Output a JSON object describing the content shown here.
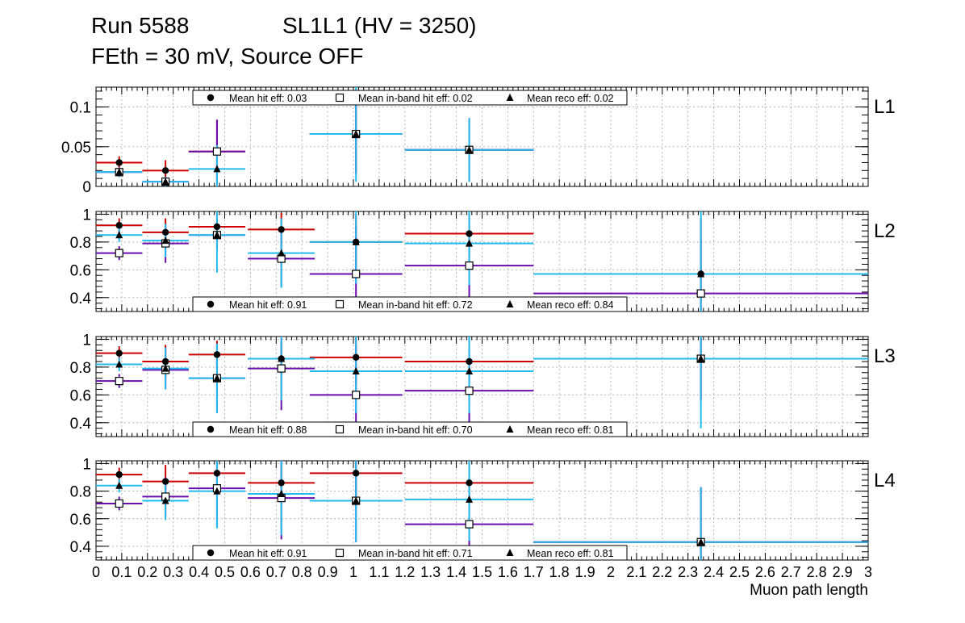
{
  "header": {
    "run": "Run 5588",
    "chamber": "SL1L1 (HV = 3250)",
    "conditions": "FEth = 30 mV, Source OFF"
  },
  "colors": {
    "hit": "#cc0000",
    "inband": "#6a0dad",
    "reco": "#22bbee",
    "marker": "#000000"
  },
  "chart_data": {
    "type": "scatter",
    "xlabel": "Muon path length",
    "xlim": [
      0,
      3
    ],
    "x_tick_labels": [
      "0",
      "0.1",
      "0.2",
      "0.3",
      "0.4",
      "0.5",
      "0.6",
      "0.7",
      "0.8",
      "0.9",
      "1",
      "1.1",
      "1.2",
      "1.3",
      "1.4",
      "1.5",
      "1.6",
      "1.7",
      "1.8",
      "1.9",
      "2",
      "2.1",
      "2.2",
      "2.3",
      "2.4",
      "2.5",
      "2.6",
      "2.7",
      "2.8",
      "2.9",
      "3"
    ],
    "grid": true,
    "series_style": {
      "hit": "circle",
      "inband": "open-square",
      "reco": "triangle"
    },
    "panels": [
      {
        "label": "L1",
        "ylim": [
          0,
          0.125
        ],
        "y_ticks": [
          0,
          0.05,
          0.1
        ],
        "y_tick_labels": [
          "0",
          "0.05",
          "0.1"
        ],
        "legend_position": "top",
        "legend": {
          "hit": "Mean hit  eff: 0.03",
          "inband": "Mean in-band hit eff: 0.02",
          "reco": "Mean reco eff: 0.02"
        },
        "hit": [
          {
            "x": 0.09,
            "xerr": 0.09,
            "y": 0.03,
            "yerr": 0.008
          },
          {
            "x": 0.27,
            "xerr": 0.09,
            "y": 0.02,
            "yerr": 0.013
          },
          {
            "x": 0.47,
            "xerr": 0.11,
            "y": 0.044,
            "yerr": 0.04
          },
          {
            "x": 1.01,
            "xerr": 0.18,
            "y": 0.066,
            "yerr": 0.05
          },
          {
            "x": 1.45,
            "xerr": 0.25,
            "y": 0.046,
            "yerr": 0.04
          }
        ],
        "inband": [
          {
            "x": 0.09,
            "xerr": 0.09,
            "y": 0.018,
            "yerr": 0.006
          },
          {
            "x": 0.27,
            "xerr": 0.09,
            "y": 0.006,
            "yerr": 0.006
          },
          {
            "x": 0.47,
            "xerr": 0.11,
            "y": 0.044,
            "yerr": 0.04
          },
          {
            "x": 1.01,
            "xerr": 0.18,
            "y": 0.066,
            "yerr": 0.05
          },
          {
            "x": 1.45,
            "xerr": 0.25,
            "y": 0.046,
            "yerr": 0.04
          }
        ],
        "reco": [
          {
            "x": 0.09,
            "xerr": 0.09,
            "y": 0.018,
            "yerr": 0.006
          },
          {
            "x": 0.27,
            "xerr": 0.09,
            "y": 0.006,
            "yerr": 0.006
          },
          {
            "x": 0.47,
            "xerr": 0.11,
            "y": 0.022,
            "yerr": 0.03
          },
          {
            "x": 1.01,
            "xerr": 0.18,
            "y": 0.066,
            "yerr": 0.06
          },
          {
            "x": 1.45,
            "xerr": 0.25,
            "y": 0.046,
            "yerr": 0.04
          }
        ]
      },
      {
        "label": "L2",
        "ylim": [
          0.3,
          1.02
        ],
        "y_ticks": [
          0.4,
          0.6,
          0.8,
          1
        ],
        "y_tick_labels": [
          "0.4",
          "0.6",
          "0.8",
          "1"
        ],
        "legend_position": "bottom",
        "legend": {
          "hit": "Mean hit  eff: 0.91",
          "inband": "Mean in-band hit eff: 0.72",
          "reco": "Mean reco eff: 0.84"
        },
        "hit": [
          {
            "x": 0.09,
            "xerr": 0.09,
            "y": 0.92,
            "yerr": 0.05
          },
          {
            "x": 0.27,
            "xerr": 0.09,
            "y": 0.87,
            "yerr": 0.1
          },
          {
            "x": 0.47,
            "xerr": 0.11,
            "y": 0.91,
            "yerr": 0.1
          },
          {
            "x": 0.72,
            "xerr": 0.13,
            "y": 0.89,
            "yerr": 0.12
          },
          {
            "x": 1.01,
            "xerr": 0.18,
            "y": 0.8,
            "yerr": 0.2
          },
          {
            "x": 1.45,
            "xerr": 0.25,
            "y": 0.86,
            "yerr": 0.15
          },
          {
            "x": 2.35,
            "xerr": 0.65,
            "y": 0.57,
            "yerr": 0.4
          }
        ],
        "inband": [
          {
            "x": 0.09,
            "xerr": 0.09,
            "y": 0.72,
            "yerr": 0.05
          },
          {
            "x": 0.27,
            "xerr": 0.09,
            "y": 0.79,
            "yerr": 0.14
          },
          {
            "x": 0.47,
            "xerr": 0.11,
            "y": 0.85,
            "yerr": 0.1
          },
          {
            "x": 0.72,
            "xerr": 0.13,
            "y": 0.68,
            "yerr": 0.2
          },
          {
            "x": 1.01,
            "xerr": 0.18,
            "y": 0.57,
            "yerr": 0.35
          },
          {
            "x": 1.45,
            "xerr": 0.25,
            "y": 0.63,
            "yerr": 0.3
          },
          {
            "x": 2.35,
            "xerr": 0.65,
            "y": 0.43,
            "yerr": 0.4
          }
        ],
        "reco": [
          {
            "x": 0.09,
            "xerr": 0.09,
            "y": 0.85,
            "yerr": 0.05
          },
          {
            "x": 0.27,
            "xerr": 0.09,
            "y": 0.81,
            "yerr": 0.12
          },
          {
            "x": 0.47,
            "xerr": 0.11,
            "y": 0.85,
            "yerr": 0.27
          },
          {
            "x": 0.72,
            "xerr": 0.13,
            "y": 0.72,
            "yerr": 0.25
          },
          {
            "x": 1.01,
            "xerr": 0.18,
            "y": 0.8,
            "yerr": 0.3
          },
          {
            "x": 1.45,
            "xerr": 0.25,
            "y": 0.79,
            "yerr": 0.3
          },
          {
            "x": 2.35,
            "xerr": 0.65,
            "y": 0.57,
            "yerr": 0.5
          }
        ]
      },
      {
        "label": "L3",
        "ylim": [
          0.3,
          1.02
        ],
        "y_ticks": [
          0.4,
          0.6,
          0.8,
          1
        ],
        "y_tick_labels": [
          "0.4",
          "0.6",
          "0.8",
          "1"
        ],
        "legend_position": "bottom",
        "legend": {
          "hit": "Mean hit  eff: 0.88",
          "inband": "Mean in-band hit eff: 0.70",
          "reco": "Mean reco eff: 0.81"
        },
        "hit": [
          {
            "x": 0.09,
            "xerr": 0.09,
            "y": 0.9,
            "yerr": 0.05
          },
          {
            "x": 0.27,
            "xerr": 0.09,
            "y": 0.84,
            "yerr": 0.12
          },
          {
            "x": 0.47,
            "xerr": 0.11,
            "y": 0.89,
            "yerr": 0.1
          },
          {
            "x": 0.72,
            "xerr": 0.13,
            "y": 0.86,
            "yerr": 0.12
          },
          {
            "x": 1.01,
            "xerr": 0.18,
            "y": 0.87,
            "yerr": 0.2
          },
          {
            "x": 1.45,
            "xerr": 0.25,
            "y": 0.84,
            "yerr": 0.15
          },
          {
            "x": 2.35,
            "xerr": 0.65,
            "y": 0.86,
            "yerr": 0.3
          }
        ],
        "inband": [
          {
            "x": 0.09,
            "xerr": 0.09,
            "y": 0.7,
            "yerr": 0.05
          },
          {
            "x": 0.27,
            "xerr": 0.09,
            "y": 0.78,
            "yerr": 0.14
          },
          {
            "x": 0.47,
            "xerr": 0.11,
            "y": 0.72,
            "yerr": 0.25
          },
          {
            "x": 0.72,
            "xerr": 0.13,
            "y": 0.79,
            "yerr": 0.3
          },
          {
            "x": 1.01,
            "xerr": 0.18,
            "y": 0.6,
            "yerr": 0.35
          },
          {
            "x": 1.45,
            "xerr": 0.25,
            "y": 0.63,
            "yerr": 0.3
          },
          {
            "x": 2.35,
            "xerr": 0.65,
            "y": 0.86,
            "yerr": 0.3
          }
        ],
        "reco": [
          {
            "x": 0.09,
            "xerr": 0.09,
            "y": 0.82,
            "yerr": 0.05
          },
          {
            "x": 0.27,
            "xerr": 0.09,
            "y": 0.79,
            "yerr": 0.15
          },
          {
            "x": 0.47,
            "xerr": 0.11,
            "y": 0.72,
            "yerr": 0.25
          },
          {
            "x": 0.72,
            "xerr": 0.13,
            "y": 0.86,
            "yerr": 0.3
          },
          {
            "x": 1.01,
            "xerr": 0.18,
            "y": 0.77,
            "yerr": 0.3
          },
          {
            "x": 1.45,
            "xerr": 0.25,
            "y": 0.77,
            "yerr": 0.3
          },
          {
            "x": 2.35,
            "xerr": 0.65,
            "y": 0.86,
            "yerr": 0.5
          }
        ]
      },
      {
        "label": "L4",
        "ylim": [
          0.3,
          1.02
        ],
        "y_ticks": [
          0.4,
          0.6,
          0.8,
          1
        ],
        "y_tick_labels": [
          "0.4",
          "0.6",
          "0.8",
          "1"
        ],
        "legend_position": "bottom",
        "legend": {
          "hit": "Mean hit  eff: 0.91",
          "inband": "Mean in-band hit eff: 0.71",
          "reco": "Mean reco eff: 0.81"
        },
        "hit": [
          {
            "x": 0.09,
            "xerr": 0.09,
            "y": 0.92,
            "yerr": 0.05
          },
          {
            "x": 0.27,
            "xerr": 0.09,
            "y": 0.87,
            "yerr": 0.12
          },
          {
            "x": 0.47,
            "xerr": 0.11,
            "y": 0.93,
            "yerr": 0.1
          },
          {
            "x": 0.72,
            "xerr": 0.13,
            "y": 0.86,
            "yerr": 0.12
          },
          {
            "x": 1.01,
            "xerr": 0.18,
            "y": 0.93,
            "yerr": 0.2
          },
          {
            "x": 1.45,
            "xerr": 0.25,
            "y": 0.86,
            "yerr": 0.15
          },
          {
            "x": 2.35,
            "xerr": 0.65,
            "y": 0.43,
            "yerr": 0.4
          }
        ],
        "inband": [
          {
            "x": 0.09,
            "xerr": 0.09,
            "y": 0.71,
            "yerr": 0.05
          },
          {
            "x": 0.27,
            "xerr": 0.09,
            "y": 0.76,
            "yerr": 0.14
          },
          {
            "x": 0.47,
            "xerr": 0.11,
            "y": 0.82,
            "yerr": 0.27
          },
          {
            "x": 0.72,
            "xerr": 0.13,
            "y": 0.75,
            "yerr": 0.3
          },
          {
            "x": 1.01,
            "xerr": 0.18,
            "y": 0.73,
            "yerr": 0.3
          },
          {
            "x": 1.45,
            "xerr": 0.25,
            "y": 0.56,
            "yerr": 0.3
          },
          {
            "x": 2.35,
            "xerr": 0.65,
            "y": 0.43,
            "yerr": 0.4
          }
        ],
        "reco": [
          {
            "x": 0.09,
            "xerr": 0.09,
            "y": 0.84,
            "yerr": 0.05
          },
          {
            "x": 0.27,
            "xerr": 0.09,
            "y": 0.73,
            "yerr": 0.14
          },
          {
            "x": 0.47,
            "xerr": 0.11,
            "y": 0.8,
            "yerr": 0.27
          },
          {
            "x": 0.72,
            "xerr": 0.13,
            "y": 0.78,
            "yerr": 0.3
          },
          {
            "x": 1.01,
            "xerr": 0.18,
            "y": 0.73,
            "yerr": 0.3
          },
          {
            "x": 1.45,
            "xerr": 0.25,
            "y": 0.74,
            "yerr": 0.3
          },
          {
            "x": 2.35,
            "xerr": 0.65,
            "y": 0.43,
            "yerr": 0.4
          }
        ]
      }
    ]
  }
}
